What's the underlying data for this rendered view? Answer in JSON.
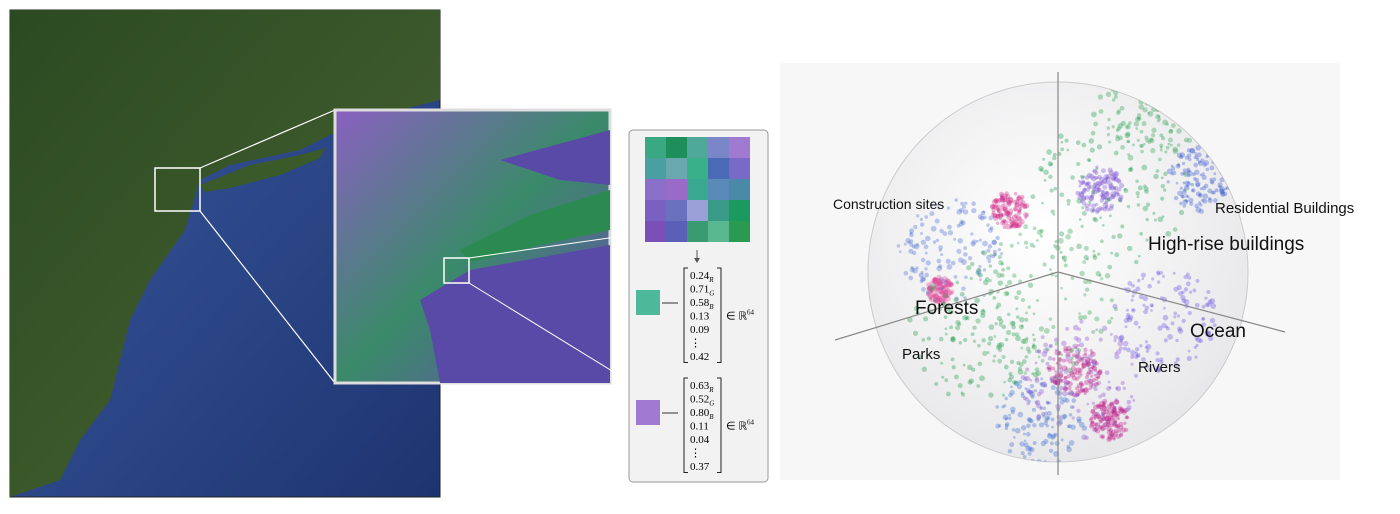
{
  "vectors": [
    {
      "entries": [
        {
          "value": "0.24",
          "sub": "R"
        },
        {
          "value": "0.71",
          "sub": "G"
        },
        {
          "value": "0.58",
          "sub": "B"
        },
        {
          "value": "0.13"
        },
        {
          "value": "0.09"
        },
        {
          "value": "⋮"
        },
        {
          "value": "0.42"
        }
      ],
      "space": "∈ ℝ",
      "dim": "64"
    },
    {
      "entries": [
        {
          "value": "0.63",
          "sub": "R"
        },
        {
          "value": "0.52",
          "sub": "G"
        },
        {
          "value": "0.80",
          "sub": "B"
        },
        {
          "value": "0.11"
        },
        {
          "value": "0.04"
        },
        {
          "value": "⋮"
        },
        {
          "value": "0.37"
        }
      ],
      "space": "∈ ℝ",
      "dim": "64"
    }
  ],
  "sphere_labels": [
    "Construction sites",
    "Residential Buildings",
    "High-rise buildings",
    "Forests",
    "Ocean",
    "Parks",
    "Rivers"
  ]
}
